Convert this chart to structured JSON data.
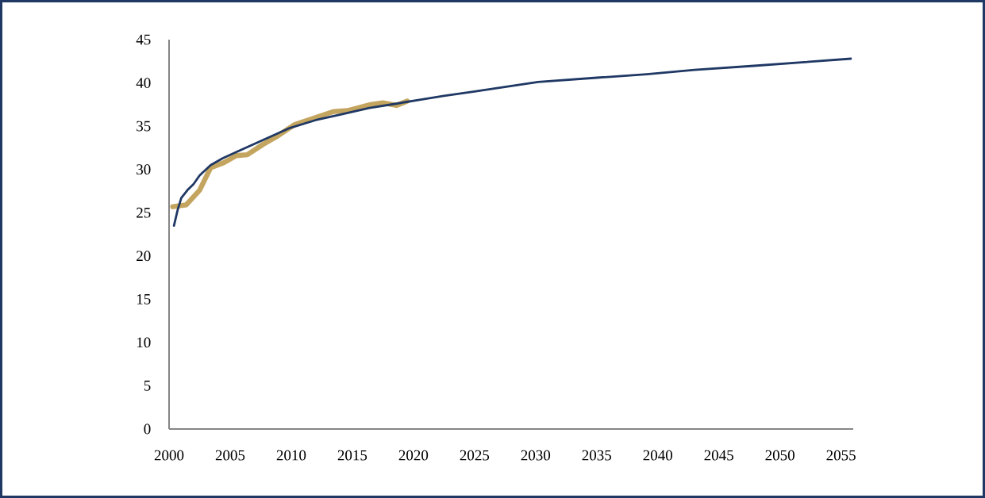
{
  "chart_data": {
    "type": "line",
    "xlim": [
      2000,
      2056
    ],
    "xticks": [
      2000,
      2005,
      2010,
      2015,
      2020,
      2025,
      2030,
      2035,
      2040,
      2045,
      2050,
      2055
    ],
    "ylim": [
      0,
      45
    ],
    "yticks": [
      0,
      5,
      10,
      15,
      20,
      25,
      30,
      35,
      40,
      45
    ],
    "grid": false,
    "series": [
      {
        "color": "#c4a55f",
        "x": [
          2000.3,
          2001.4,
          2002.5,
          2003.4,
          2004.5,
          2005.5,
          2006.4,
          2007.7,
          2008.8,
          2010.3,
          2012.0,
          2013.5,
          2014.6,
          2016.5,
          2017.5,
          2018.6,
          2019.5
        ],
        "values": [
          25.7,
          25.9,
          27.6,
          30.2,
          30.8,
          31.6,
          31.7,
          32.9,
          33.8,
          35.2,
          36.0,
          36.7,
          36.8,
          37.5,
          37.7,
          37.4,
          37.9
        ]
      },
      {
        "color": "#1f3864",
        "x": [
          2000.4,
          2000.7,
          2001.0,
          2001.5,
          2002.0,
          2002.5,
          2003.4,
          2004.4,
          2005.5,
          2007.7,
          2009.9,
          2012.0,
          2014.2,
          2016.4,
          2018.6,
          2020.7,
          2022.5,
          2025.0,
          2030.2,
          2035.0,
          2039.1,
          2043.0,
          2048.1,
          2052.0,
          2055.8
        ],
        "values": [
          23.5,
          25.3,
          26.7,
          27.6,
          28.3,
          29.3,
          30.5,
          31.3,
          32.0,
          33.4,
          34.8,
          35.7,
          36.4,
          37.1,
          37.6,
          38.1,
          38.5,
          39.0,
          40.1,
          40.6,
          41.0,
          41.5,
          42.0,
          42.4,
          42.8
        ]
      }
    ]
  }
}
